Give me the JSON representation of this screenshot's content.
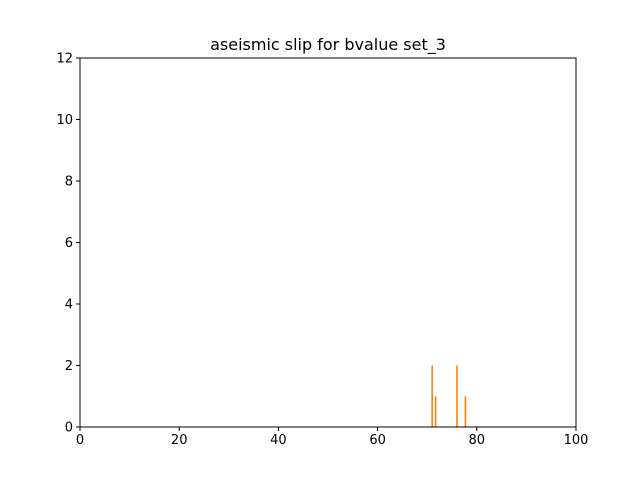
{
  "chart_data": {
    "type": "bar",
    "title": "aseismic slip for bvalue set_3",
    "xlabel": "",
    "ylabel": "",
    "xlim": [
      0,
      100
    ],
    "ylim": [
      0,
      12
    ],
    "xticks": [
      0,
      20,
      40,
      60,
      80,
      100
    ],
    "yticks": [
      0,
      2,
      4,
      6,
      8,
      10,
      12
    ],
    "grid": false,
    "bar_color": "#ff7f0e",
    "bars": [
      {
        "x": 71.0,
        "value": 2
      },
      {
        "x": 71.7,
        "value": 1
      },
      {
        "x": 76.0,
        "value": 2
      },
      {
        "x": 77.7,
        "value": 1
      }
    ]
  }
}
